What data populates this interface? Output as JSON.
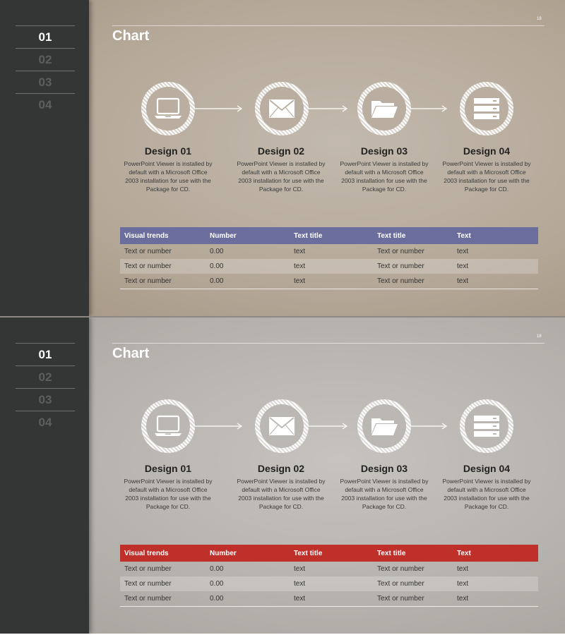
{
  "slides": [
    {
      "nav": [
        "01",
        "02",
        "03",
        "04"
      ],
      "title": "Chart",
      "page_number": "18",
      "steps": [
        {
          "icon": "laptop-icon",
          "title": "Design 01",
          "desc": "PowerPoint Viewer is installed by default with a Microsoft Office 2003 installation for use with the Package for CD."
        },
        {
          "icon": "envelope-icon",
          "title": "Design 02",
          "desc": "PowerPoint Viewer is installed by default with a Microsoft Office 2003 installation for use with the Package for CD."
        },
        {
          "icon": "folder-icon",
          "title": "Design 03",
          "desc": "PowerPoint Viewer is installed by default with a Microsoft Office 2003 installation for use with the Package for CD."
        },
        {
          "icon": "server-icon",
          "title": "Design 04",
          "desc": "PowerPoint Viewer is installed by default with a Microsoft Office 2003 installation for use with the Package for CD."
        }
      ],
      "table": {
        "header_color": "#6b6e9c",
        "headers": [
          "Visual trends",
          "Number",
          "Text title",
          "Text title",
          "Text"
        ],
        "rows": [
          [
            "Text or number",
            "0.00",
            "text",
            "Text or number",
            "text"
          ],
          [
            "Text or number",
            "0.00",
            "text",
            "Text or number",
            "text"
          ],
          [
            "Text or number",
            "0.00",
            "text",
            "Text or number",
            "text"
          ]
        ]
      }
    },
    {
      "nav": [
        "01",
        "02",
        "03",
        "04"
      ],
      "title": "Chart",
      "page_number": "18",
      "steps": [
        {
          "icon": "laptop-icon",
          "title": "Design 01",
          "desc": "PowerPoint Viewer is installed by default with a Microsoft Office 2003 installation for use with the Package for CD."
        },
        {
          "icon": "envelope-icon",
          "title": "Design 02",
          "desc": "PowerPoint Viewer is installed by default with a Microsoft Office 2003 installation for use with the Package for CD."
        },
        {
          "icon": "folder-icon",
          "title": "Design 03",
          "desc": "PowerPoint Viewer is installed by default with a Microsoft Office 2003 installation for use with the Package for CD."
        },
        {
          "icon": "server-icon",
          "title": "Design 04",
          "desc": "PowerPoint Viewer is installed by default with a Microsoft Office 2003 installation for use with the Package for CD."
        }
      ],
      "table": {
        "header_color": "#c0302b",
        "headers": [
          "Visual trends",
          "Number",
          "Text title",
          "Text title",
          "Text"
        ],
        "rows": [
          [
            "Text or number",
            "0.00",
            "text",
            "Text or number",
            "text"
          ],
          [
            "Text or number",
            "0.00",
            "text",
            "Text or number",
            "text"
          ],
          [
            "Text or number",
            "0.00",
            "text",
            "Text or number",
            "text"
          ]
        ]
      }
    }
  ]
}
